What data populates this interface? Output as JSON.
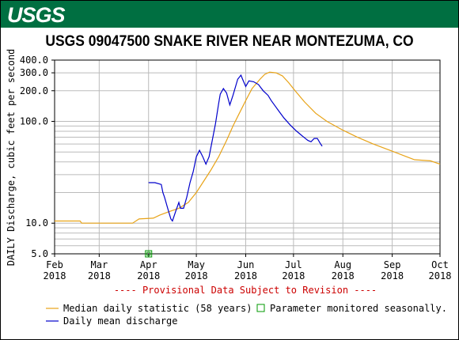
{
  "logo_text": "USGS",
  "chart_data": {
    "type": "line",
    "title": "USGS 09047500 SNAKE RIVER NEAR MONTEZUMA, CO",
    "ylabel": "DAILY Discharge, cubic feet per second",
    "yscale": "log",
    "ylim": [
      5,
      400
    ],
    "xlim": [
      "2018-02-01",
      "2018-10-01"
    ],
    "y_ticks": [
      {
        "label": "400.0",
        "value": 400
      },
      {
        "label": "300.0",
        "value": 300
      },
      {
        "label": "200.0",
        "value": 200
      },
      {
        "label": "100.0",
        "value": 100
      },
      {
        "label": "10.0",
        "value": 10
      },
      {
        "label": "5.0",
        "value": 5
      }
    ],
    "x_ticks": [
      {
        "month": "Feb",
        "year": "2018",
        "date": "2018-02-01"
      },
      {
        "month": "Mar",
        "year": "2018",
        "date": "2018-03-01"
      },
      {
        "month": "Apr",
        "year": "2018",
        "date": "2018-04-01"
      },
      {
        "month": "May",
        "year": "2018",
        "date": "2018-05-01"
      },
      {
        "month": "Jun",
        "year": "2018",
        "date": "2018-06-01"
      },
      {
        "month": "Jul",
        "year": "2018",
        "date": "2018-07-01"
      },
      {
        "month": "Aug",
        "year": "2018",
        "date": "2018-08-01"
      },
      {
        "month": "Sep",
        "year": "2018",
        "date": "2018-09-01"
      },
      {
        "month": "Oct",
        "year": "2018",
        "date": "2018-10-01"
      }
    ],
    "provisional_note": "---- Provisional Data Subject to Revision ----",
    "grid": true,
    "series": [
      {
        "name": "Median daily statistic (58 years)",
        "color": "#e8a317",
        "points": [
          [
            "2018-02-01",
            10.5
          ],
          [
            "2018-02-17",
            10.5
          ],
          [
            "2018-02-18",
            10.0
          ],
          [
            "2018-03-01",
            10.0
          ],
          [
            "2018-03-15",
            10.0
          ],
          [
            "2018-03-22",
            10.0
          ],
          [
            "2018-03-26",
            11.0
          ],
          [
            "2018-04-04",
            11.2
          ],
          [
            "2018-04-08",
            12.0
          ],
          [
            "2018-04-14",
            13.0
          ],
          [
            "2018-04-20",
            14.0
          ],
          [
            "2018-04-26",
            16.0
          ],
          [
            "2018-05-01",
            20.0
          ],
          [
            "2018-05-05",
            25.0
          ],
          [
            "2018-05-10",
            33.0
          ],
          [
            "2018-05-15",
            45.0
          ],
          [
            "2018-05-20",
            65.0
          ],
          [
            "2018-05-24",
            90.0
          ],
          [
            "2018-05-28",
            120.0
          ],
          [
            "2018-06-01",
            160.0
          ],
          [
            "2018-06-05",
            210.0
          ],
          [
            "2018-06-10",
            260.0
          ],
          [
            "2018-06-13",
            290.0
          ],
          [
            "2018-06-16",
            305.0
          ],
          [
            "2018-06-20",
            300.0
          ],
          [
            "2018-06-24",
            280.0
          ],
          [
            "2018-06-28",
            240.0
          ],
          [
            "2018-07-02",
            200.0
          ],
          [
            "2018-07-08",
            155.0
          ],
          [
            "2018-07-15",
            120.0
          ],
          [
            "2018-07-22",
            100.0
          ],
          [
            "2018-08-01",
            82.0
          ],
          [
            "2018-08-10",
            70.0
          ],
          [
            "2018-08-20",
            60.0
          ],
          [
            "2018-09-01",
            51.0
          ],
          [
            "2018-09-10",
            45.0
          ],
          [
            "2018-09-15",
            42.0
          ],
          [
            "2018-09-25",
            41.0
          ],
          [
            "2018-10-01",
            38.0
          ]
        ]
      },
      {
        "name": "Daily mean discharge",
        "color": "#0000cc",
        "points": [
          [
            "2018-04-01",
            25.0
          ],
          [
            "2018-04-05",
            25.0
          ],
          [
            "2018-04-09",
            24.0
          ],
          [
            "2018-04-10",
            20.0
          ],
          [
            "2018-04-11",
            18.0
          ],
          [
            "2018-04-13",
            14.0
          ],
          [
            "2018-04-15",
            11.0
          ],
          [
            "2018-04-16",
            10.5
          ],
          [
            "2018-04-18",
            13.0
          ],
          [
            "2018-04-20",
            16.0
          ],
          [
            "2018-04-21",
            14.0
          ],
          [
            "2018-04-23",
            14.0
          ],
          [
            "2018-04-25",
            18.0
          ],
          [
            "2018-04-27",
            25.0
          ],
          [
            "2018-04-29",
            32.0
          ],
          [
            "2018-05-01",
            45.0
          ],
          [
            "2018-05-03",
            52.0
          ],
          [
            "2018-05-05",
            45.0
          ],
          [
            "2018-05-07",
            38.0
          ],
          [
            "2018-05-09",
            45.0
          ],
          [
            "2018-05-11",
            65.0
          ],
          [
            "2018-05-13",
            95.0
          ],
          [
            "2018-05-15",
            150.0
          ],
          [
            "2018-05-16",
            185.0
          ],
          [
            "2018-05-18",
            210.0
          ],
          [
            "2018-05-20",
            190.0
          ],
          [
            "2018-05-22",
            145.0
          ],
          [
            "2018-05-24",
            180.0
          ],
          [
            "2018-05-27",
            260.0
          ],
          [
            "2018-05-29",
            285.0
          ],
          [
            "2018-05-30",
            260.0
          ],
          [
            "2018-06-01",
            220.0
          ],
          [
            "2018-06-03",
            250.0
          ],
          [
            "2018-06-06",
            245.0
          ],
          [
            "2018-06-09",
            230.0
          ],
          [
            "2018-06-12",
            200.0
          ],
          [
            "2018-06-15",
            180.0
          ],
          [
            "2018-06-17",
            160.0
          ],
          [
            "2018-06-19",
            145.0
          ],
          [
            "2018-06-22",
            125.0
          ],
          [
            "2018-06-25",
            108.0
          ],
          [
            "2018-06-29",
            92.0
          ],
          [
            "2018-07-03",
            80.0
          ],
          [
            "2018-07-07",
            71.0
          ],
          [
            "2018-07-10",
            65.0
          ],
          [
            "2018-07-12",
            63.0
          ],
          [
            "2018-07-14",
            68.0
          ],
          [
            "2018-07-16",
            68.0
          ],
          [
            "2018-07-18",
            60.0
          ],
          [
            "2018-07-19",
            57.0
          ]
        ]
      }
    ],
    "legend": {
      "placement": "bottom",
      "items": [
        {
          "label": "Median daily statistic (58 years)",
          "kind": "line",
          "color": "#e8a317"
        },
        {
          "label": "Daily mean discharge",
          "kind": "line",
          "color": "#0000cc"
        },
        {
          "label": "Parameter monitored seasonally.",
          "kind": "box",
          "color": "#009900"
        }
      ]
    },
    "seasonal_marker": {
      "date": "2018-04-01",
      "value": 5
    }
  }
}
